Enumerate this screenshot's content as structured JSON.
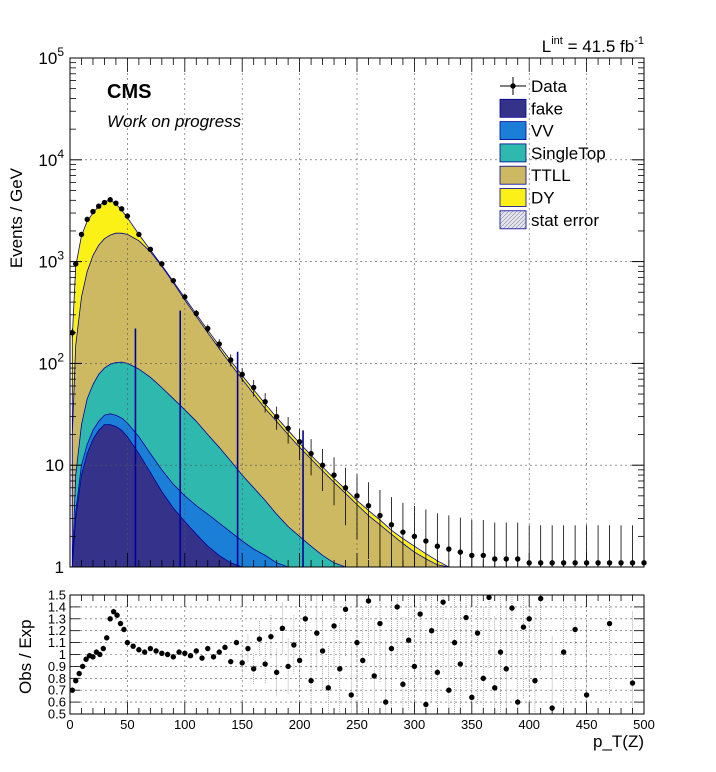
{
  "luminosity_label": {
    "base": "L",
    "sup_int": "int",
    "value": " = 41.5 fb",
    "sup_unit": "-1"
  },
  "cms_label": "CMS",
  "cms_sublabel": "Work on progress",
  "colors": {
    "data": "#000000",
    "fake": "#35328a",
    "VV": "#1b7fd7",
    "SingleTop": "#2fb8ad",
    "TTLL": "#cdb962",
    "DY": "#fbf116",
    "stat_error": "#c8c8d4",
    "mc_outline": "#000099"
  },
  "chart_data": [
    {
      "type": "area",
      "panel": "main",
      "ylabel": "Events / GeV",
      "xlim": [
        0,
        500
      ],
      "ylim": [
        1,
        100000
      ],
      "y_scale": "log",
      "grid": true,
      "yticks": [
        {
          "v": 1,
          "label": "1"
        },
        {
          "v": 10,
          "label": "10"
        },
        {
          "v": 100,
          "base": "10",
          "exp": "2"
        },
        {
          "v": 1000,
          "base": "10",
          "exp": "3"
        },
        {
          "v": 10000,
          "base": "10",
          "exp": "4"
        },
        {
          "v": 100000,
          "base": "10",
          "exp": "5"
        }
      ],
      "legend_position": "top-right",
      "legend": [
        {
          "name": "Data",
          "style": "marker"
        },
        {
          "name": "fake",
          "style": "fill",
          "color": "#35328a"
        },
        {
          "name": "VV",
          "style": "fill",
          "color": "#1b7fd7"
        },
        {
          "name": "SingleTop",
          "style": "fill",
          "color": "#2fb8ad"
        },
        {
          "name": "TTLL",
          "style": "fill",
          "color": "#cdb962"
        },
        {
          "name": "DY",
          "style": "fill",
          "color": "#fbf116"
        },
        {
          "name": "stat error",
          "style": "hatch",
          "color": "#c8c8d4"
        }
      ],
      "x": [
        2,
        5,
        10,
        15,
        20,
        25,
        30,
        35,
        40,
        45,
        50,
        60,
        70,
        80,
        90,
        100,
        110,
        120,
        130,
        140,
        150,
        160,
        170,
        180,
        190,
        200,
        210,
        220,
        230,
        240,
        250,
        260,
        270,
        280,
        290,
        300,
        310,
        320,
        330,
        340,
        350,
        360,
        370,
        380,
        390,
        400,
        410,
        420,
        430,
        440,
        450,
        460,
        470,
        480,
        490,
        500
      ],
      "series": [
        {
          "name": "fake",
          "values": [
            1,
            3,
            8,
            13,
            18,
            22,
            25,
            25,
            24,
            22,
            19,
            13,
            8.5,
            5.5,
            3.8,
            2.8,
            2.1,
            1.6,
            1.3,
            1.1,
            1,
            1,
            1,
            1,
            1,
            1,
            1,
            1,
            1,
            1,
            1,
            1,
            1,
            1,
            1,
            1,
            1,
            1,
            1,
            1,
            1,
            1,
            1,
            1,
            1,
            1,
            1,
            1,
            1,
            1,
            1,
            1,
            1,
            1,
            1,
            1
          ]
        },
        {
          "name": "VV",
          "values": [
            1,
            3.5,
            10,
            16,
            22,
            27,
            31,
            32,
            31,
            29,
            26,
            19,
            13,
            9,
            6.5,
            5,
            4,
            3.3,
            2.7,
            2.2,
            1.8,
            1.5,
            1.3,
            1.1,
            1,
            1,
            1,
            1,
            1,
            1,
            1,
            1,
            1,
            1,
            1,
            1,
            1,
            1,
            1,
            1,
            1,
            1,
            1,
            1,
            1,
            1,
            1,
            1,
            1,
            1,
            1,
            1,
            1,
            1,
            1,
            1
          ]
        },
        {
          "name": "SingleTop",
          "values": [
            1,
            8,
            25,
            45,
            62,
            78,
            90,
            98,
            102,
            103,
            100,
            88,
            73,
            58,
            45,
            35,
            27,
            20,
            15,
            11,
            8,
            6,
            4.5,
            3.3,
            2.5,
            2,
            1.6,
            1.3,
            1.1,
            1,
            1,
            1,
            1,
            1,
            1,
            1,
            1,
            1,
            1,
            1,
            1,
            1,
            1,
            1,
            1,
            1,
            1,
            1,
            1,
            1,
            1,
            1,
            1,
            1,
            1,
            1
          ]
        },
        {
          "name": "TTLL",
          "values": [
            20,
            150,
            450,
            800,
            1150,
            1450,
            1680,
            1820,
            1900,
            1900,
            1850,
            1600,
            1250,
            900,
            620,
            420,
            290,
            200,
            140,
            98,
            70,
            50,
            36,
            27,
            20,
            15,
            11.5,
            8.8,
            6.8,
            5.3,
            4.1,
            3.2,
            2.6,
            2.1,
            1.7,
            1.4,
            1.2,
            1.05,
            1,
            1,
            1,
            1,
            1,
            1,
            1,
            1,
            1,
            1,
            1,
            1,
            1,
            1,
            1,
            1,
            1,
            1
          ]
        },
        {
          "name": "DY",
          "values": [
            180,
            900,
            1800,
            2500,
            3000,
            3500,
            3900,
            4000,
            3700,
            3200,
            2700,
            1850,
            1300,
            920,
            640,
            440,
            305,
            212,
            150,
            106,
            76,
            55,
            40,
            29.5,
            22,
            16.5,
            12.5,
            9.6,
            7.4,
            5.8,
            4.5,
            3.6,
            2.9,
            2.3,
            1.9,
            1.6,
            1.35,
            1.15,
            1,
            1,
            1,
            1,
            1,
            1,
            1,
            1,
            1,
            1,
            1,
            1,
            1,
            1,
            1,
            1,
            1,
            1
          ]
        },
        {
          "name": "Data",
          "values": [
            200,
            950,
            1850,
            2600,
            3100,
            3500,
            3800,
            4050,
            3750,
            3300,
            2800,
            1850,
            1320,
            950,
            650,
            450,
            310,
            220,
            155,
            108,
            78,
            58,
            42,
            30,
            23,
            17,
            13,
            10,
            8,
            6,
            5,
            4,
            3.2,
            2.6,
            2.2,
            2,
            1.8,
            1.6,
            1.5,
            1.4,
            1.3,
            1.3,
            1.2,
            1.2,
            1.2,
            1.1,
            1.1,
            1.1,
            1.1,
            1.1,
            1.1,
            1.1,
            1.1,
            1.1,
            1.1,
            1.1
          ]
        }
      ],
      "spikes": [
        {
          "x": 57,
          "value": 220
        },
        {
          "x": 96,
          "value": 330
        },
        {
          "x": 146,
          "value": 130
        },
        {
          "x": 203,
          "value": 22
        }
      ]
    },
    {
      "type": "scatter",
      "panel": "ratio",
      "ylabel": "Obs / Exp",
      "xlabel": "p_T(Z)",
      "xlim": [
        0,
        500
      ],
      "ylim": [
        0.5,
        1.5
      ],
      "grid": true,
      "xticks": [
        "0",
        "50",
        "100",
        "150",
        "200",
        "250",
        "300",
        "350",
        "400",
        "450",
        "500"
      ],
      "yticks": [
        "0.5",
        "0.6",
        "0.7",
        "0.8",
        "0.9",
        "1",
        "1.1",
        "1.2",
        "1.3",
        "1.4",
        "1.5"
      ],
      "x": [
        2,
        5,
        8,
        11,
        14,
        17,
        20,
        23,
        26,
        29,
        32,
        35,
        38,
        41,
        44,
        47,
        50,
        55,
        60,
        65,
        70,
        75,
        80,
        85,
        90,
        95,
        100,
        105,
        110,
        115,
        120,
        125,
        130,
        135,
        140,
        145,
        150,
        155,
        160,
        165,
        170,
        175,
        180,
        185,
        190,
        195,
        200,
        205,
        210,
        215,
        220,
        225,
        230,
        235,
        240,
        245,
        250,
        255,
        260,
        265,
        270,
        275,
        280,
        285,
        290,
        295,
        300,
        305,
        310,
        315,
        320,
        325,
        330,
        335,
        340,
        345,
        350,
        355,
        360,
        365,
        370,
        375,
        380,
        385,
        390,
        395,
        400,
        405,
        410,
        420,
        430,
        440,
        450,
        470,
        490
      ],
      "values": [
        0.7,
        0.78,
        0.84,
        0.9,
        0.96,
        0.99,
        0.98,
        1.02,
        1.0,
        1.05,
        1.14,
        1.3,
        1.36,
        1.33,
        1.26,
        1.21,
        1.1,
        1.07,
        1.04,
        1.02,
        1.05,
        1.03,
        1.01,
        1.0,
        0.98,
        1.02,
        1.01,
        0.99,
        1.03,
        0.97,
        1.05,
        0.98,
        1.02,
        1.06,
        0.94,
        1.1,
        0.93,
        1.05,
        0.88,
        1.13,
        0.92,
        1.15,
        0.85,
        1.22,
        0.9,
        1.08,
        0.95,
        1.3,
        0.78,
        1.18,
        1.03,
        0.72,
        1.24,
        0.88,
        1.38,
        0.66,
        1.1,
        0.95,
        1.45,
        0.82,
        1.26,
        0.6,
        1.05,
        1.4,
        0.75,
        1.12,
        0.9,
        1.34,
        0.58,
        1.2,
        0.85,
        1.44,
        0.7,
        1.1,
        0.92,
        1.31,
        0.64,
        1.18,
        0.8,
        1.48,
        0.72,
        1.02,
        0.88,
        1.39,
        0.6,
        1.23,
        1.3,
        0.78,
        1.47,
        0.55,
        1.02,
        1.21,
        0.66,
        1.26,
        0.76
      ]
    }
  ]
}
